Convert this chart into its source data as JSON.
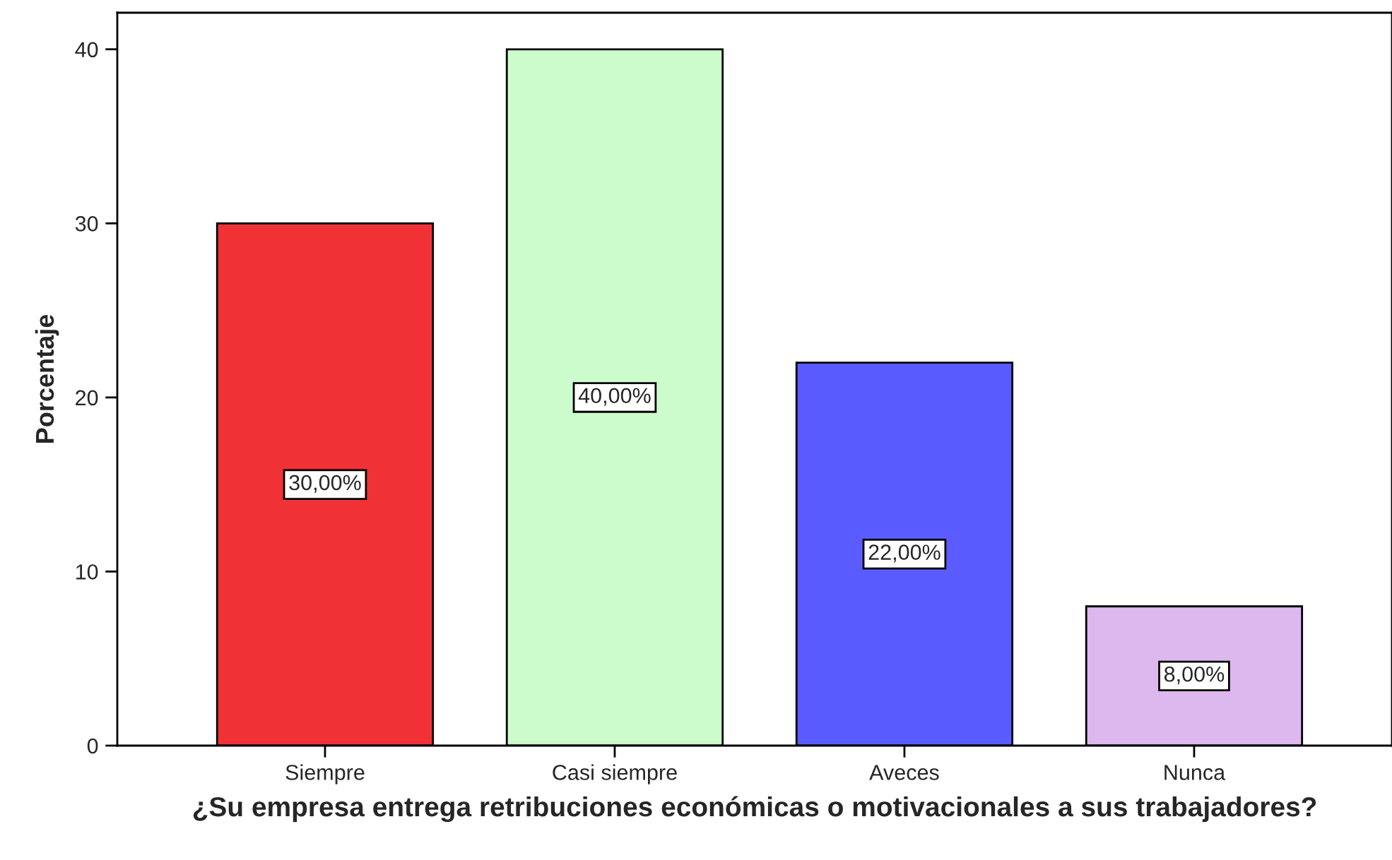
{
  "chart_data": {
    "type": "bar",
    "xlabel": "¿Su empresa entrega retribuciones económicas o motivacionales a sus trabajadores?",
    "ylabel": "Porcentaje",
    "categories": [
      "Siempre",
      "Casi siempre",
      "Aveces",
      "Nunca"
    ],
    "values": [
      30,
      40,
      22,
      8
    ],
    "colors": [
      "#f03237",
      "#ccfccc",
      "#5a5cff",
      "#dcb8ee"
    ],
    "value_labels": [
      "30,00%",
      "40,00%",
      "22,00%",
      "8,00%"
    ],
    "ylim": [
      0,
      42.1
    ],
    "yticks": [
      0,
      10,
      20,
      30,
      40
    ],
    "grid": false,
    "legend": false
  }
}
